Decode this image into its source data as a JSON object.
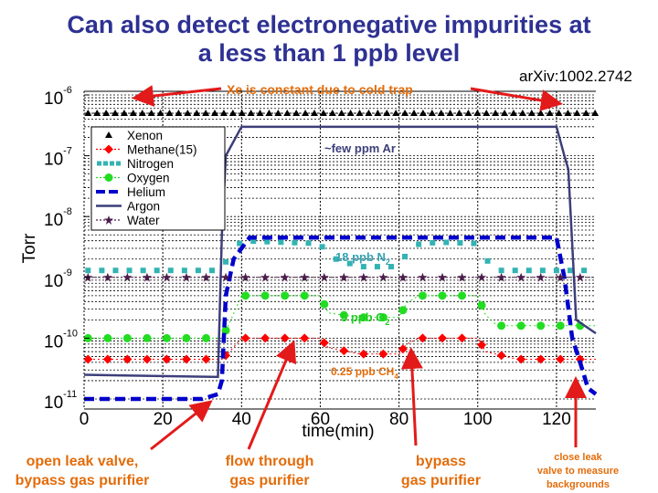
{
  "slide": {
    "title_line1": "Can also detect electronegative impurities at",
    "title_line2": "a less than 1 ppb level",
    "reference": "arXiv:1002.2742",
    "annotations": {
      "xe_note": "Xe is constant due to cold trap",
      "ar_note": "~few ppm Ar",
      "n2_note": "18 ppb N",
      "n2_sub": "2",
      "o2_note": "5 ppb O",
      "o2_sub": "2",
      "ch4_note": "0.25 ppb CH",
      "ch4_sub": "4",
      "step1_line1": "open leak valve,",
      "step1_line2": "bypass gas purifier",
      "step2_line1": "flow through",
      "step2_line2": "gas purifier",
      "step3_line1": "bypass",
      "step3_line2": "gas purifier",
      "step4_line1": "close leak",
      "step4_line2": "valve to measure",
      "step4_line3": "backgrounds"
    }
  },
  "chart_data": {
    "type": "line",
    "title": "",
    "xlabel": "time(min)",
    "ylabel": "Torr",
    "xlim": [
      0,
      130
    ],
    "ylim": [
      1e-11,
      1e-06
    ],
    "yscale": "log",
    "grid": true,
    "x_ticks": [
      0,
      20,
      40,
      60,
      80,
      100,
      120
    ],
    "y_ticks": [
      "10^-6",
      "10^-7",
      "10^-8",
      "10^-9",
      "10^-10",
      "10^-11"
    ],
    "legend_position": "upper left",
    "legend": [
      "Xenon",
      "Methane(15)",
      "Nitrogen",
      "Oxygen",
      "Helium",
      "Argon",
      "Water"
    ],
    "series": [
      {
        "name": "Xenon",
        "color": "#000000",
        "marker": "triangle",
        "x": [
          0,
          130
        ],
        "y": [
          5e-07,
          5e-07
        ]
      },
      {
        "name": "Methane(15)",
        "color": "#ff0000",
        "marker": "diamond",
        "x": [
          0,
          35,
          37,
          40,
          60,
          62,
          70,
          80,
          82,
          85,
          90,
          100,
          102,
          110,
          120,
          130
        ],
        "y": [
          4.5e-11,
          4.5e-11,
          6e-11,
          1e-10,
          1e-10,
          7e-11,
          5.5e-11,
          5.5e-11,
          8e-11,
          1e-10,
          1e-10,
          1e-10,
          6e-11,
          4.5e-11,
          4.5e-11,
          4.5e-11
        ]
      },
      {
        "name": "Nitrogen",
        "color": "#33b3b3",
        "marker": "square",
        "x": [
          0,
          34,
          36,
          40,
          60,
          62,
          70,
          80,
          82,
          85,
          90,
          100,
          102,
          105,
          130
        ],
        "y": [
          1.3e-09,
          1.3e-09,
          1.8e-09,
          4e-09,
          3.6e-09,
          2.2e-09,
          1.5e-09,
          1.5e-09,
          2.5e-09,
          3.5e-09,
          3.8e-09,
          3.6e-09,
          2e-09,
          1.3e-09,
          1.3e-09
        ]
      },
      {
        "name": "Oxygen",
        "color": "#22dd22",
        "marker": "circle",
        "x": [
          0,
          35,
          37,
          40,
          60,
          62,
          70,
          80,
          82,
          85,
          90,
          100,
          102,
          105,
          130
        ],
        "y": [
          1e-10,
          1e-10,
          1.8e-10,
          5e-10,
          5e-10,
          2.6e-10,
          2.2e-10,
          2.2e-10,
          3.8e-10,
          5e-10,
          5e-10,
          5e-10,
          2.4e-10,
          1.6e-10,
          1.6e-10
        ]
      },
      {
        "name": "Helium",
        "color": "#0000cc",
        "style": "dashed",
        "x": [
          0,
          30,
          34,
          35,
          36,
          38,
          42,
          120,
          122,
          124,
          126,
          128,
          130
        ],
        "y": [
          1e-11,
          1e-11,
          1.2e-11,
          2e-11,
          5e-10,
          2e-09,
          4.5e-09,
          4.5e-09,
          1e-09,
          1e-10,
          4e-11,
          1.5e-11,
          1.2e-11
        ]
      },
      {
        "name": "Argon",
        "color": "#3c3f7a",
        "style": "solid",
        "x": [
          0,
          34,
          35,
          36,
          40,
          120,
          122,
          123,
          125,
          130
        ],
        "y": [
          2.5e-11,
          2.3e-11,
          5e-09,
          1e-07,
          3e-07,
          3e-07,
          1e-07,
          6e-08,
          2e-10,
          1.2e-10
        ]
      },
      {
        "name": "Water",
        "color": "#4b1d4b",
        "marker": "star",
        "x": [
          0,
          130
        ],
        "y": [
          1e-09,
          1e-09
        ]
      }
    ]
  }
}
